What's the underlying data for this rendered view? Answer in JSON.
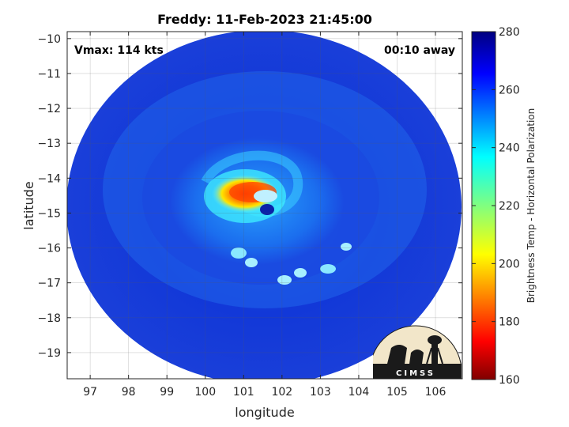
{
  "chart_data": {
    "type": "heatmap",
    "title": "Freddy: 11-Feb-2023 21:45:00",
    "xlabel": "longitude",
    "ylabel": "latitude",
    "xlim": [
      96.4,
      106.7
    ],
    "ylim": [
      -19.75,
      -9.8
    ],
    "x_ticks": [
      97,
      98,
      99,
      100,
      101,
      102,
      103,
      104,
      105,
      106
    ],
    "y_ticks": [
      -10,
      -11,
      -12,
      -13,
      -14,
      -15,
      -16,
      -17,
      -18,
      -19
    ],
    "grid": true,
    "annotations": {
      "vmax": "Vmax: 114 kts",
      "time_away": "00:10 away"
    },
    "storm_center": {
      "lon": 101.6,
      "lat": -14.85
    },
    "colorbar": {
      "label": "Brightness Temp - Horizontal Polarization",
      "range": [
        160,
        280
      ],
      "ticks": [
        160,
        180,
        200,
        220,
        240,
        260,
        280
      ],
      "colormap": "jet"
    },
    "logo": {
      "text": "CIMSS"
    }
  }
}
